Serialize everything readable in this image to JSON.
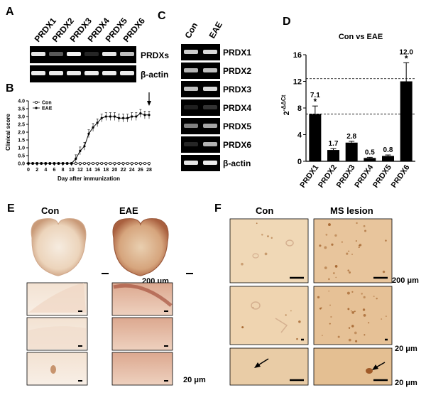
{
  "panels": {
    "A": {
      "letter": "A",
      "lanes": [
        "PRDX1",
        "PRDX2",
        "PRDX3",
        "PRDX4",
        "PRDX5",
        "PRDX6"
      ],
      "rows": [
        "PRDXs",
        "β-actin"
      ]
    },
    "B": {
      "letter": "B",
      "ylabel": "Clinical score",
      "xlabel": "Day after immunization",
      "legend": [
        "Con",
        "EAE"
      ],
      "yticks": [
        "0.0",
        "0.5",
        "1.0",
        "1.5",
        "2.0",
        "2.5",
        "3.0",
        "3.5",
        "4.0"
      ],
      "xticks": [
        "0",
        "2",
        "4",
        "6",
        "8",
        "10",
        "12",
        "14",
        "16",
        "18",
        "20",
        "22",
        "24",
        "26",
        "28"
      ]
    },
    "C": {
      "letter": "C",
      "lanes": [
        "Con",
        "EAE"
      ],
      "rows": [
        "PRDX1",
        "PRDX2",
        "PRDX3",
        "PRDX4",
        "PRDX5",
        "PRDX6",
        "β-actin"
      ]
    },
    "D": {
      "letter": "D",
      "title": "Con  vs  EAE",
      "ylabel": "2-ΔΔCt"
    },
    "E": {
      "letter": "E",
      "col_labels": [
        "Con",
        "EAE"
      ],
      "scale_large": "200 μm",
      "scale_small": "20 μm"
    },
    "F": {
      "letter": "F",
      "col_labels": [
        "Con",
        "MS lesion"
      ],
      "scale_large": "200 μm",
      "scale_small": "20 μm"
    }
  },
  "chart_data": [
    {
      "type": "line",
      "title": "",
      "xlabel": "Day after immunization",
      "ylabel": "Clinical score",
      "xlim": [
        0,
        28
      ],
      "ylim": [
        0,
        4.0
      ],
      "x": [
        0,
        1,
        2,
        3,
        4,
        5,
        6,
        7,
        8,
        9,
        10,
        11,
        12,
        13,
        14,
        15,
        16,
        17,
        18,
        19,
        20,
        21,
        22,
        23,
        24,
        25,
        26,
        27,
        28
      ],
      "series": [
        {
          "name": "Con",
          "values": [
            0,
            0,
            0,
            0,
            0,
            0,
            0,
            0,
            0,
            0,
            0,
            0,
            0,
            0,
            0,
            0,
            0,
            0,
            0,
            0,
            0,
            0,
            0,
            0,
            0,
            0,
            0,
            0,
            0
          ]
        },
        {
          "name": "EAE",
          "values": [
            0,
            0,
            0,
            0,
            0,
            0,
            0,
            0,
            0,
            0,
            0,
            0.3,
            0.8,
            1.1,
            1.9,
            2.3,
            2.6,
            2.9,
            3.0,
            3.0,
            3.0,
            2.9,
            2.9,
            2.9,
            3.0,
            3.0,
            3.2,
            3.1,
            3.1
          ]
        }
      ],
      "legend": "top-left",
      "grid": false
    },
    {
      "type": "bar",
      "title": "Con  vs  EAE",
      "ylabel": "2-ΔΔCt",
      "categories": [
        "PRDX1",
        "PRDX2",
        "PRDX3",
        "PRDX4",
        "PRDX5",
        "PRDX6"
      ],
      "values": [
        7.1,
        1.7,
        2.8,
        0.5,
        0.8,
        12.0
      ],
      "errors": [
        1.2,
        0.2,
        0.2,
        0.1,
        0.15,
        2.8
      ],
      "labels": [
        "7.1",
        "1.7",
        "2.8",
        "0.5",
        "0.8",
        "12.0"
      ],
      "significant": [
        true,
        false,
        false,
        false,
        false,
        true
      ],
      "sig_marker": "*",
      "ylim": [
        0,
        16
      ],
      "yticks": [
        0,
        4,
        8,
        12,
        16
      ],
      "ref_lines": [
        7.1,
        12.4
      ]
    }
  ]
}
